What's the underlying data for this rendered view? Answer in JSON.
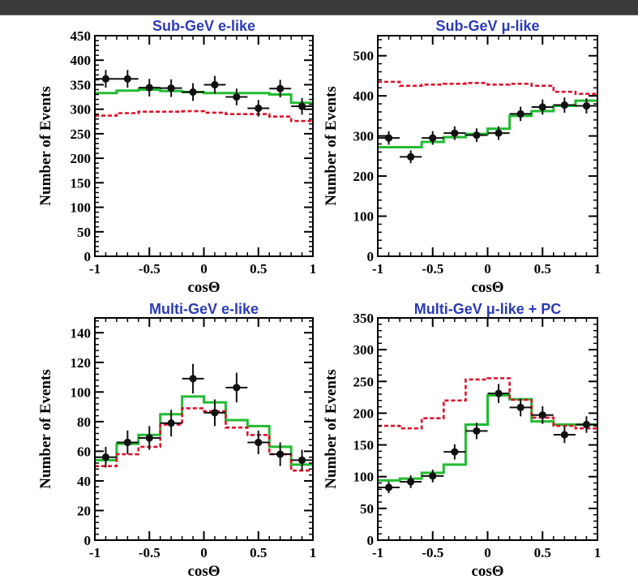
{
  "chart_data": [
    {
      "type": "line",
      "title": "Sub-GeV e-like",
      "xlabel": "cosΘ",
      "ylabel": "Number of Events",
      "xlim": [
        -1,
        1
      ],
      "ylim": [
        0,
        450
      ],
      "xticks": [
        "-1",
        "-0.5",
        "0",
        "0.5",
        "1"
      ],
      "yticks": [
        "0",
        "50",
        "100",
        "150",
        "200",
        "250",
        "300",
        "350",
        "400",
        "450"
      ],
      "bin_edges": [
        -1,
        -0.8,
        -0.6,
        -0.4,
        -0.2,
        0,
        0.2,
        0.4,
        0.6,
        0.8,
        1
      ],
      "series": [
        {
          "style": "data-points",
          "color": "#111111",
          "x": [
            -0.9,
            -0.7,
            -0.5,
            -0.3,
            -0.1,
            0.1,
            0.3,
            0.5,
            0.7,
            0.9
          ],
          "values": [
            362,
            362,
            344,
            343,
            335,
            350,
            325,
            302,
            342,
            306
          ],
          "errors": [
            18,
            18,
            18,
            18,
            18,
            18,
            17,
            17,
            18,
            17
          ]
        },
        {
          "style": "solid-step",
          "color": "#22bb33",
          "values": [
            333,
            338,
            340,
            337,
            335,
            333,
            333,
            333,
            330,
            313
          ]
        },
        {
          "style": "dashed-step",
          "color": "#e0102a",
          "values": [
            287,
            292,
            295,
            295,
            296,
            293,
            290,
            290,
            285,
            276
          ]
        }
      ]
    },
    {
      "type": "line",
      "title": "Sub-GeV μ-like",
      "xlabel": "cosΘ",
      "ylabel": "Number of Events",
      "xlim": [
        -1,
        1
      ],
      "ylim": [
        0,
        550
      ],
      "xticks": [
        "-1",
        "-0.5",
        "0",
        "0.5",
        "1"
      ],
      "yticks": [
        "0",
        "100",
        "200",
        "300",
        "400",
        "500"
      ],
      "bin_edges": [
        -1,
        -0.8,
        -0.6,
        -0.4,
        -0.2,
        0,
        0.2,
        0.4,
        0.6,
        0.8,
        1
      ],
      "series": [
        {
          "style": "data-points",
          "color": "#111111",
          "x": [
            -0.9,
            -0.7,
            -0.5,
            -0.3,
            -0.1,
            0.1,
            0.3,
            0.5,
            0.7,
            0.9
          ],
          "values": [
            295,
            248,
            295,
            307,
            302,
            307,
            355,
            372,
            377,
            375
          ],
          "errors": [
            17,
            16,
            17,
            17,
            17,
            17,
            18,
            19,
            19,
            19
          ]
        },
        {
          "style": "solid-step",
          "color": "#22bb33",
          "values": [
            272,
            272,
            285,
            297,
            305,
            318,
            350,
            362,
            375,
            388
          ]
        },
        {
          "style": "dashed-step",
          "color": "#e0102a",
          "values": [
            435,
            425,
            428,
            430,
            432,
            428,
            430,
            425,
            410,
            405
          ]
        }
      ]
    },
    {
      "type": "line",
      "title": "Multi-GeV e-like",
      "xlabel": "cosΘ",
      "ylabel": "Number of Events",
      "xlim": [
        -1,
        1
      ],
      "ylim": [
        0,
        150
      ],
      "xticks": [
        "-1",
        "-0.5",
        "0",
        "0.5",
        "1"
      ],
      "yticks": [
        "0",
        "20",
        "40",
        "60",
        "80",
        "100",
        "120",
        "140"
      ],
      "bin_edges": [
        -1,
        -0.8,
        -0.6,
        -0.4,
        -0.2,
        0,
        0.2,
        0.4,
        0.6,
        0.8,
        1
      ],
      "series": [
        {
          "style": "data-points",
          "color": "#111111",
          "x": [
            -0.9,
            -0.7,
            -0.5,
            -0.3,
            -0.1,
            0.1,
            0.3,
            0.5,
            0.7,
            0.9
          ],
          "values": [
            56,
            66,
            69,
            79,
            109,
            86,
            103,
            66,
            58,
            54
          ],
          "errors": [
            7,
            8,
            8,
            9,
            10,
            9,
            10,
            8,
            8,
            7
          ]
        },
        {
          "style": "solid-step",
          "color": "#22bb33",
          "values": [
            54,
            65,
            71,
            85,
            97,
            93,
            81,
            77,
            63,
            51
          ]
        },
        {
          "style": "dashed-step",
          "color": "#e0102a",
          "values": [
            50,
            58,
            63,
            78,
            89,
            87,
            76,
            71,
            58,
            47
          ]
        }
      ]
    },
    {
      "type": "line",
      "title": "Multi-GeV μ-like + PC",
      "xlabel": "cosΘ",
      "ylabel": "Number of Events",
      "xlim": [
        -1,
        1
      ],
      "ylim": [
        0,
        350
      ],
      "xticks": [
        "-1",
        "-0.5",
        "0",
        "0.5",
        "1"
      ],
      "yticks": [
        "0",
        "50",
        "100",
        "150",
        "200",
        "250",
        "300",
        "350"
      ],
      "bin_edges": [
        -1,
        -0.8,
        -0.6,
        -0.4,
        -0.2,
        0,
        0.2,
        0.4,
        0.6,
        0.8,
        1
      ],
      "series": [
        {
          "style": "data-points",
          "color": "#111111",
          "x": [
            -0.9,
            -0.7,
            -0.5,
            -0.3,
            -0.1,
            0.1,
            0.3,
            0.5,
            0.7,
            0.9
          ],
          "values": [
            83,
            92,
            101,
            139,
            172,
            231,
            209,
            197,
            166,
            182
          ],
          "errors": [
            9,
            10,
            10,
            12,
            13,
            15,
            14,
            14,
            13,
            13
          ]
        },
        {
          "style": "solid-step",
          "color": "#22bb33",
          "values": [
            94,
            97,
            106,
            119,
            182,
            228,
            222,
            187,
            182,
            182
          ]
        },
        {
          "style": "dashed-step",
          "color": "#e0102a",
          "values": [
            180,
            176,
            192,
            220,
            253,
            255,
            221,
            193,
            180,
            176
          ]
        }
      ]
    }
  ]
}
